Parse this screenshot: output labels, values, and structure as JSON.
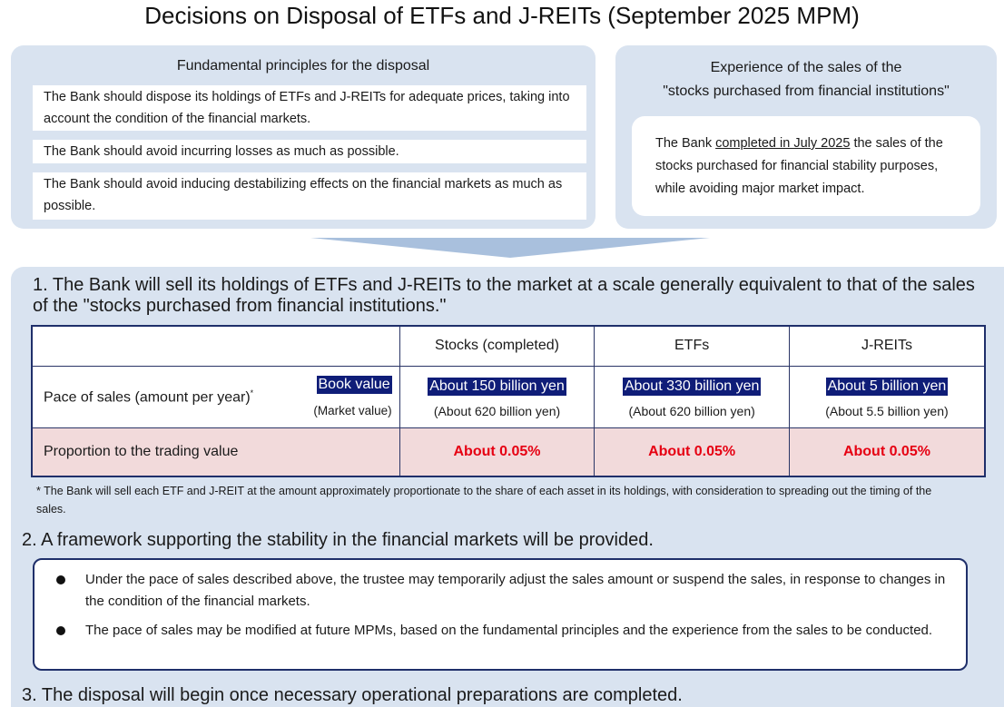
{
  "title": "Decisions on Disposal of ETFs and J-REITs (September 2025 MPM)",
  "principles": {
    "heading": "Fundamental principles for the disposal",
    "items": [
      "The Bank should dispose its holdings of ETFs and J-REITs for adequate prices, taking into account the condition of the financial markets.",
      "The Bank should avoid incurring losses as much as possible.",
      "The Bank should avoid inducing destabilizing effects on the financial markets as much as possible."
    ]
  },
  "experience": {
    "heading_line1": "Experience of the sales of the",
    "heading_line2": "\"stocks purchased from financial institutions\"",
    "text_before": "The Bank ",
    "text_underlined": "completed in July 2025",
    "text_after": " the sales of the stocks purchased for financial stability purposes, while avoiding major market impact."
  },
  "point1": "1. The Bank will sell its holdings of ETFs and J-REITs to the market at a scale generally equivalent to that of the sales of the \"stocks purchased from financial institutions.\"",
  "table": {
    "headers": [
      "",
      "Stocks (completed)",
      "ETFs",
      "J-REITs"
    ],
    "pace_label": "Pace of sales (amount per year)",
    "pace_mark": "*",
    "book_label": "Book value",
    "market_label": "(Market value)",
    "book_values": [
      "About 150 billion yen",
      "About 330 billion yen",
      "About 5 billion yen"
    ],
    "market_values": [
      "(About 620 billion yen)",
      "(About 620 billion yen)",
      "(About 5.5 billion yen)"
    ],
    "proportion_label": "Proportion to the trading value",
    "proportion_values": [
      "About 0.05%",
      "About 0.05%",
      "About 0.05%"
    ]
  },
  "footnote": "* The Bank will sell each ETF and J-REIT at the amount approximately proportionate to the share of each asset in its holdings, with consideration to spreading out the timing of the sales.",
  "point2": "2. A framework supporting the stability in the financial markets will be provided.",
  "framework": [
    "Under the pace of sales described above, the trustee may temporarily adjust the sales amount or suspend the sales, in response to changes in the condition of the financial markets.",
    "The pace of sales may be modified at future MPMs, based on the fundamental principles and the experience from the sales to be conducted."
  ],
  "point3": "3. The disposal will begin once necessary operational preparations are completed.",
  "colors": {
    "panel_bg": "#d9e3f0",
    "highlight_bg": "#0f1d78",
    "proportion_text": "#e60012",
    "proportion_bg": "#f2dadb"
  }
}
